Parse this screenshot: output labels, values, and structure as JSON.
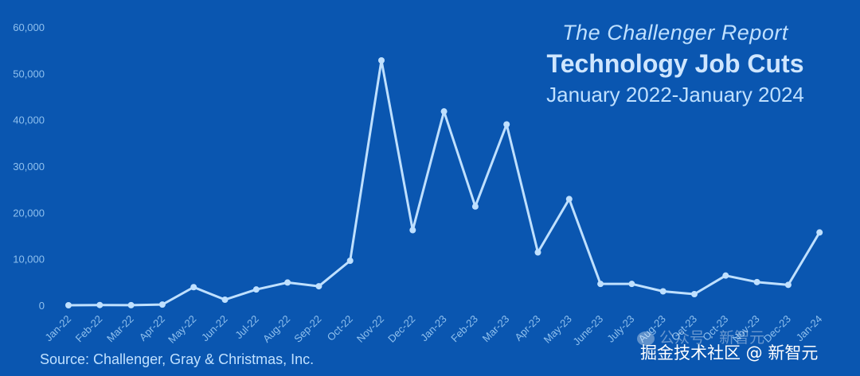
{
  "chart_data": {
    "type": "line",
    "title": "The Challenger Report",
    "subtitle": "Technology Job Cuts",
    "period": "January 2022-January 2024",
    "source": "Source: Challenger, Gray & Christmas, Inc.",
    "ylim": [
      0,
      60000
    ],
    "yticks": [
      0,
      10000,
      20000,
      30000,
      40000,
      50000,
      60000
    ],
    "ytick_labels": [
      "0",
      "10,000",
      "20,000",
      "30,000",
      "40,000",
      "50,000",
      "60,000"
    ],
    "categories": [
      "Jan-22",
      "Feb-22",
      "Mar-22",
      "Apr-22",
      "May-22",
      "Jun-22",
      "Jul-22",
      "Aug-22",
      "Sep-22",
      "Oct-22",
      "Nov-22",
      "Dec-22",
      "Jan-23",
      "Feb-23",
      "Mar-23",
      "Apr-23",
      "May-23",
      "June-23",
      "July-23",
      "Aug-23",
      "Oct-23",
      "Oct-23",
      "Nov-23",
      "Dec-23",
      "Jan-24"
    ],
    "values": [
      0,
      50,
      20,
      150,
      3900,
      1200,
      3400,
      4900,
      4100,
      9600,
      52800,
      16200,
      41800,
      21300,
      39000,
      11400,
      22900,
      4600,
      4600,
      3000,
      2400,
      6400,
      5000,
      4400,
      15700
    ],
    "grid": false,
    "line_color": "#bfe0ff"
  },
  "watermark": {
    "line1": "公众号 · 新智元",
    "line2": "掘金技术社区 @ 新智元"
  }
}
